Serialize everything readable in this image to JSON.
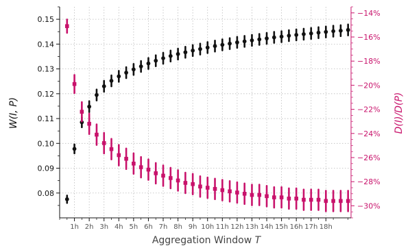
{
  "chart_data": {
    "type": "scatter",
    "xlabel": "Aggregation Window ",
    "xlabel_var": "T",
    "ylabel": "W(I, P)",
    "y2label": "D(I)/D(P)",
    "x_tick_labels": [
      "1h",
      "2h",
      "3h",
      "4h",
      "5h",
      "6h",
      "7h",
      "8h",
      "9h",
      "10h",
      "11h",
      "12h",
      "13h",
      "14h",
      "15h",
      "16h",
      "17h",
      "18h"
    ],
    "ylim": [
      0.07,
      0.155
    ],
    "y_ticks": [
      0.08,
      0.09,
      0.1,
      0.11,
      0.12,
      0.13,
      0.14,
      0.15
    ],
    "y_tick_labels": [
      "0.08",
      "0.09",
      "0.10",
      "0.11",
      "0.12",
      "0.13",
      "0.14",
      "0.15"
    ],
    "y2lim": [
      -31.0,
      -13.5
    ],
    "y2_ticks": [
      -30,
      -28,
      -26,
      -24,
      -22,
      -20,
      -18,
      -16,
      -14
    ],
    "y2_tick_labels": [
      "−30%",
      "−28%",
      "−26%",
      "−24%",
      "−22%",
      "−20%",
      "−18%",
      "−16%",
      "−14%"
    ],
    "x_start": 0.5,
    "x_step": 0.5,
    "grid": true,
    "colors": {
      "series_w": "#111111",
      "series_d": "#c8126b",
      "grid": "#bbbbbb"
    },
    "series": [
      {
        "axis": "left",
        "marker": "circle",
        "values": [
          0.0775,
          0.0978,
          0.1085,
          0.1148,
          0.1195,
          0.123,
          0.1252,
          0.127,
          0.1285,
          0.1298,
          0.131,
          0.1322,
          0.1333,
          0.1343,
          0.1352,
          0.136,
          0.1367,
          0.1374,
          0.138,
          0.1386,
          0.1392,
          0.1397,
          0.1402,
          0.1407,
          0.1411,
          0.1415,
          0.1419,
          0.1423,
          0.1427,
          0.143,
          0.1434,
          0.1437,
          0.144,
          0.1443,
          0.1446,
          0.1449,
          0.1452,
          0.1454,
          0.1457
        ],
        "errors": [
          0.0015,
          0.0018,
          0.002,
          0.0022,
          0.0022,
          0.0022,
          0.0022,
          0.0022,
          0.0022,
          0.0022,
          0.0022,
          0.0022,
          0.0022,
          0.0022,
          0.0022,
          0.0022,
          0.0022,
          0.0022,
          0.0022,
          0.0022,
          0.0022,
          0.0022,
          0.0022,
          0.0022,
          0.0022,
          0.0022,
          0.0022,
          0.0022,
          0.0022,
          0.0022,
          0.0022,
          0.0022,
          0.0022,
          0.0022,
          0.0022,
          0.0022,
          0.0022,
          0.0022,
          0.0022
        ]
      },
      {
        "axis": "right",
        "marker": "square",
        "values": [
          -15.1,
          -19.9,
          -22.2,
          -23.2,
          -24.1,
          -24.8,
          -25.3,
          -25.8,
          -26.1,
          -26.5,
          -26.8,
          -27.0,
          -27.3,
          -27.5,
          -27.7,
          -27.9,
          -28.1,
          -28.2,
          -28.4,
          -28.5,
          -28.6,
          -28.7,
          -28.8,
          -28.9,
          -29.0,
          -29.1,
          -29.1,
          -29.2,
          -29.3,
          -29.3,
          -29.4,
          -29.4,
          -29.5,
          -29.5,
          -29.5,
          -29.6,
          -29.6,
          -29.6,
          -29.6
        ],
        "errors": [
          0.55,
          0.75,
          0.8,
          0.85,
          0.85,
          0.85,
          0.85,
          0.85,
          0.85,
          0.85,
          0.85,
          0.85,
          0.85,
          0.85,
          0.85,
          0.85,
          0.85,
          0.85,
          0.85,
          0.85,
          0.85,
          0.85,
          0.85,
          0.85,
          0.85,
          0.85,
          0.85,
          0.85,
          0.85,
          0.85,
          0.85,
          0.85,
          0.85,
          0.85,
          0.85,
          0.85,
          0.85,
          0.85,
          0.85
        ]
      }
    ]
  }
}
